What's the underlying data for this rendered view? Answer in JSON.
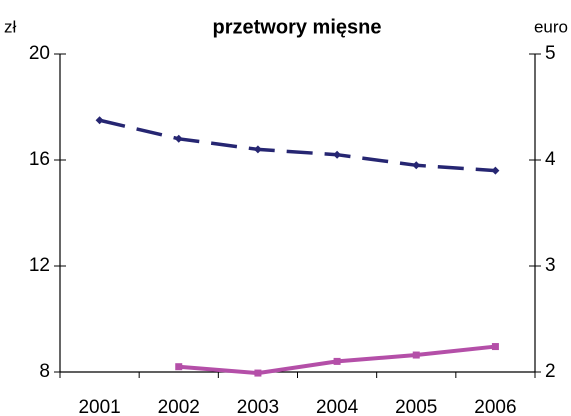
{
  "chart_data": {
    "type": "line",
    "title": "przetwory mięsne",
    "y_unit": "zł",
    "y2_unit": "euro",
    "categories": [
      "2001",
      "2002",
      "2003",
      "2004",
      "2005",
      "2006"
    ],
    "series": [
      {
        "color": "#262672",
        "dashed": true,
        "values": [
          17.5,
          16.8,
          16.4,
          16.2,
          15.8,
          15.6
        ]
      },
      {
        "color": "#b44fa8",
        "axis": "y2",
        "values": [
          null,
          2.05,
          1.99,
          2.1,
          2.16,
          2.24
        ]
      }
    ],
    "ylim": [
      8,
      20
    ],
    "yticks": [
      8,
      12,
      16,
      20
    ],
    "y2lim": [
      2,
      5
    ],
    "y2ticks": [
      2,
      3,
      4,
      5
    ]
  }
}
